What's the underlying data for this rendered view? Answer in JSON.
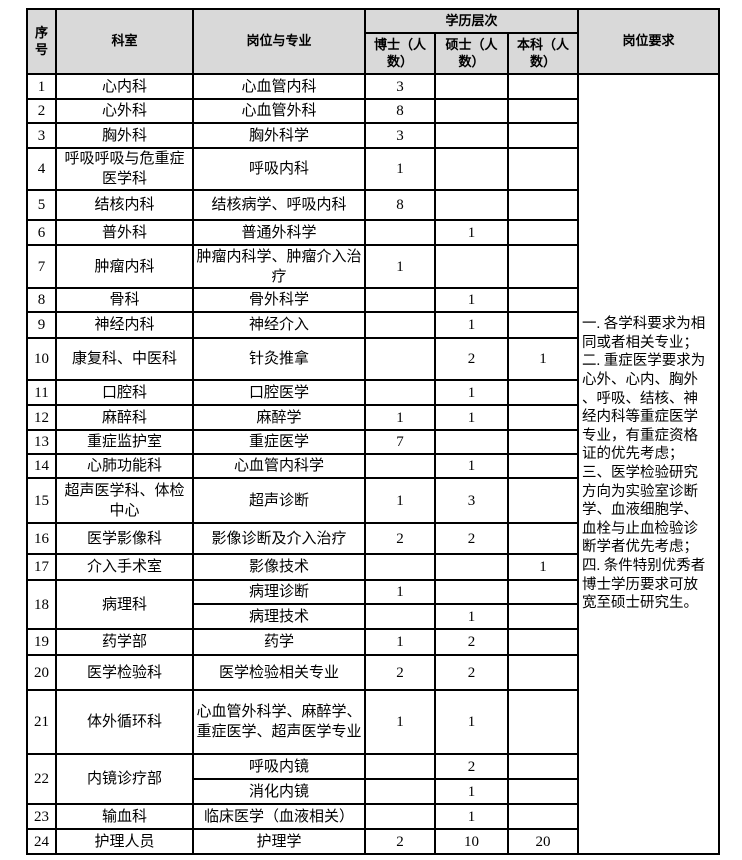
{
  "header": {
    "no": "序号",
    "dept": "科室",
    "position": "岗位与专业",
    "education": "学历层次",
    "phd": "博士（人数）",
    "master": "硕士（人数）",
    "bachelor": "本科（人数）",
    "requirements": "岗位要求"
  },
  "header_background": "#d9d9d9",
  "rows": [
    {
      "no": "1",
      "dept": "心内科",
      "positions": [
        {
          "name": "心血管内科",
          "phd": "3",
          "master": "",
          "bachelor": ""
        }
      ]
    },
    {
      "no": "2",
      "dept": "心外科",
      "positions": [
        {
          "name": "心血管外科",
          "phd": "8",
          "master": "",
          "bachelor": ""
        }
      ]
    },
    {
      "no": "3",
      "dept": "胸外科",
      "positions": [
        {
          "name": "胸外科学",
          "phd": "3",
          "master": "",
          "bachelor": ""
        }
      ]
    },
    {
      "no": "4",
      "dept": "呼吸呼吸与危重症医学科",
      "positions": [
        {
          "name": "呼吸内科",
          "phd": "1",
          "master": "",
          "bachelor": ""
        }
      ]
    },
    {
      "no": "5",
      "dept": "结核内科",
      "positions": [
        {
          "name": "结核病学、呼吸内科",
          "phd": "8",
          "master": "",
          "bachelor": ""
        }
      ]
    },
    {
      "no": "6",
      "dept": "普外科",
      "positions": [
        {
          "name": "普通外科学",
          "phd": "",
          "master": "1",
          "bachelor": ""
        }
      ]
    },
    {
      "no": "7",
      "dept": "肿瘤内科",
      "positions": [
        {
          "name": "肿瘤内科学、肿瘤介入治疗",
          "phd": "1",
          "master": "",
          "bachelor": ""
        }
      ]
    },
    {
      "no": "8",
      "dept": "骨科",
      "positions": [
        {
          "name": "骨外科学",
          "phd": "",
          "master": "1",
          "bachelor": ""
        }
      ]
    },
    {
      "no": "9",
      "dept": "神经内科",
      "positions": [
        {
          "name": "神经介入",
          "phd": "",
          "master": "1",
          "bachelor": ""
        }
      ]
    },
    {
      "no": "10",
      "dept": "康复科、中医科",
      "positions": [
        {
          "name": "针灸推拿",
          "phd": "",
          "master": "2",
          "bachelor": "1"
        }
      ]
    },
    {
      "no": "11",
      "dept": "口腔科",
      "positions": [
        {
          "name": "口腔医学",
          "phd": "",
          "master": "1",
          "bachelor": ""
        }
      ]
    },
    {
      "no": "12",
      "dept": "麻醉科",
      "positions": [
        {
          "name": "麻醉学",
          "phd": "1",
          "master": "1",
          "bachelor": ""
        }
      ]
    },
    {
      "no": "13",
      "dept": "重症监护室",
      "positions": [
        {
          "name": "重症医学",
          "phd": "7",
          "master": "",
          "bachelor": ""
        }
      ]
    },
    {
      "no": "14",
      "dept": "心肺功能科",
      "positions": [
        {
          "name": "心血管内科学",
          "phd": "",
          "master": "1",
          "bachelor": ""
        }
      ]
    },
    {
      "no": "15",
      "dept": "超声医学科、体检中心",
      "positions": [
        {
          "name": "超声诊断",
          "phd": "1",
          "master": "3",
          "bachelor": ""
        }
      ]
    },
    {
      "no": "16",
      "dept": "医学影像科",
      "positions": [
        {
          "name": "影像诊断及介入治疗",
          "phd": "2",
          "master": "2",
          "bachelor": ""
        }
      ]
    },
    {
      "no": "17",
      "dept": "介入手术室",
      "positions": [
        {
          "name": "影像技术",
          "phd": "",
          "master": "",
          "bachelor": "1"
        }
      ]
    },
    {
      "no": "18",
      "dept": "病理科",
      "positions": [
        {
          "name": "病理诊断",
          "phd": "1",
          "master": "",
          "bachelor": ""
        },
        {
          "name": "病理技术",
          "phd": "",
          "master": "1",
          "bachelor": ""
        }
      ]
    },
    {
      "no": "19",
      "dept": "药学部",
      "positions": [
        {
          "name": "药学",
          "phd": "1",
          "master": "2",
          "bachelor": ""
        }
      ]
    },
    {
      "no": "20",
      "dept": "医学检验科",
      "positions": [
        {
          "name": "医学检验相关专业",
          "phd": "2",
          "master": "2",
          "bachelor": ""
        }
      ]
    },
    {
      "no": "21",
      "dept": "体外循环科",
      "positions": [
        {
          "name": "心血管外科学、麻醉学、重症医学、超声医学专业",
          "phd": "1",
          "master": "1",
          "bachelor": ""
        }
      ]
    },
    {
      "no": "22",
      "dept": "内镜诊疗部",
      "positions": [
        {
          "name": "呼吸内镜",
          "phd": "",
          "master": "2",
          "bachelor": ""
        },
        {
          "name": "消化内镜",
          "phd": "",
          "master": "1",
          "bachelor": ""
        }
      ]
    },
    {
      "no": "23",
      "dept": "输血科",
      "positions": [
        {
          "name": "临床医学（血液相关）",
          "phd": "",
          "master": "1",
          "bachelor": ""
        }
      ]
    },
    {
      "no": "24",
      "dept": "护理人员",
      "positions": [
        {
          "name": "护理学",
          "phd": "2",
          "master": "10",
          "bachelor": "20"
        }
      ]
    }
  ],
  "requirements_lines": [
    "一. 各学科要求为相",
    "同或者相关专业；",
    "二. 重症医学要求为",
    "心外、心内、胸外",
    "、呼吸、结核、神",
    "经内科等重症医学",
    "专业，有重症资格",
    "证的优先考虑；",
    "三、医学检验研究",
    "方向为实验室诊断",
    "学、血液细胞学、",
    "血栓与止血检验诊",
    "断学者优先考虑；",
    "四. 条件特别优秀者",
    "博士学历要求可放",
    "宽至硕士研究生。"
  ]
}
